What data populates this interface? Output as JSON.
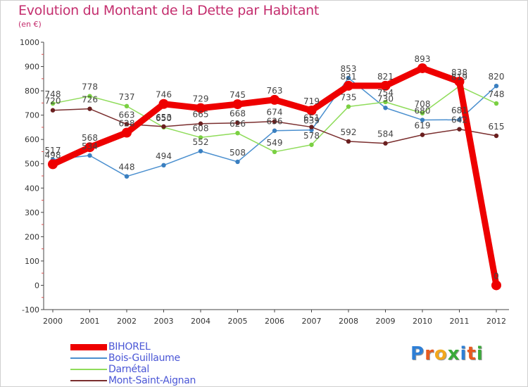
{
  "header": {
    "title": "Evolution du Montant de la Dette par Habitant",
    "subtitle": "(en €)"
  },
  "brand": {
    "name": "Proxiti",
    "letters": [
      "P",
      "r",
      "o",
      "x",
      "i",
      "t",
      "i"
    ],
    "letter_colors": [
      "#2e7fd6",
      "#e85a1e",
      "#f2a81c",
      "#3aaa3a",
      "#2e7fd6",
      "#e85a1e",
      "#3aaa3a"
    ]
  },
  "chart_data": {
    "type": "line",
    "title": "Evolution du Montant de la Dette par Habitant",
    "subtitle": "(en €)",
    "x": [
      "2000",
      "2001",
      "2002",
      "2003",
      "2004",
      "2005",
      "2006",
      "2007",
      "2008",
      "2009",
      "2010",
      "2011",
      "2012"
    ],
    "ylim": [
      -100,
      1000
    ],
    "yticks": [
      "-100",
      "0",
      "100",
      "200",
      "300",
      "400",
      "500",
      "600",
      "700",
      "800",
      "900",
      "1000"
    ],
    "grid": false,
    "legend_position": "bottom-left",
    "series": [
      {
        "name": "BIHOREL",
        "color": "#ee0000",
        "emphasis": true,
        "values": [
          498,
          568,
          628,
          746,
          729,
          745,
          763,
          719,
          821,
          821,
          893,
          838,
          0
        ],
        "labels": [
          "498",
          "568",
          "628",
          "746",
          "729",
          "745",
          "763",
          "719",
          "821",
          "821",
          "893",
          "838",
          "0"
        ]
      },
      {
        "name": "Bois-Guillaume",
        "color": "#4a8fcf",
        "point_color": "#3a7fc0",
        "values": [
          517,
          534,
          448,
          494,
          552,
          508,
          636,
          639,
          853,
          730,
          680,
          681,
          820
        ],
        "labels": [
          "517",
          "534",
          "448",
          "494",
          "552",
          "508",
          "636",
          "639",
          "853",
          "730",
          "680",
          "681",
          "820"
        ]
      },
      {
        "name": "Darnétal",
        "color": "#8fdc5a",
        "point_color": "#7ad042",
        "values": [
          748,
          778,
          737,
          650,
          608,
          626,
          549,
          578,
          735,
          754,
          708,
          819,
          748
        ],
        "labels": [
          "748",
          "778",
          "737",
          "650",
          "608",
          "626",
          "549",
          "578",
          "735",
          "754",
          "708",
          "819",
          "748"
        ]
      },
      {
        "name": "Mont-Saint-Aignan",
        "color": "#7a2e2e",
        "point_color": "#6a1f1f",
        "values": [
          720,
          726,
          663,
          653,
          665,
          668,
          674,
          651,
          592,
          584,
          619,
          642,
          615
        ],
        "labels": [
          "720",
          "726",
          "663",
          "653",
          "665",
          "668",
          "674",
          "651",
          "592",
          "584",
          "619",
          "642",
          "615"
        ]
      }
    ]
  }
}
